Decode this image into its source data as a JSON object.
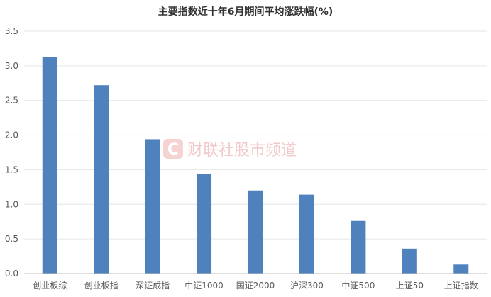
{
  "chart_data": {
    "type": "bar",
    "title": "主要指数近十年6月期间平均涨跌幅(%)",
    "categories": [
      "创业板综",
      "创业板指",
      "深证成指",
      "中证1000",
      "国证2000",
      "沪深300",
      "中证500",
      "上证50",
      "上证指数"
    ],
    "values": [
      3.13,
      2.72,
      1.94,
      1.44,
      1.2,
      1.14,
      0.76,
      0.36,
      0.13
    ],
    "y_ticks": [
      "0.0",
      "0.5",
      "1.0",
      "1.5",
      "2.0",
      "2.5",
      "3.0",
      "3.5"
    ],
    "ylim": [
      0,
      3.5
    ],
    "grid": true,
    "legend": "none",
    "bar_color": "#4f81bd"
  },
  "watermark": {
    "text": "财联社股市频道",
    "icon": "cls-logo-icon",
    "color": "#e8a3a3"
  }
}
